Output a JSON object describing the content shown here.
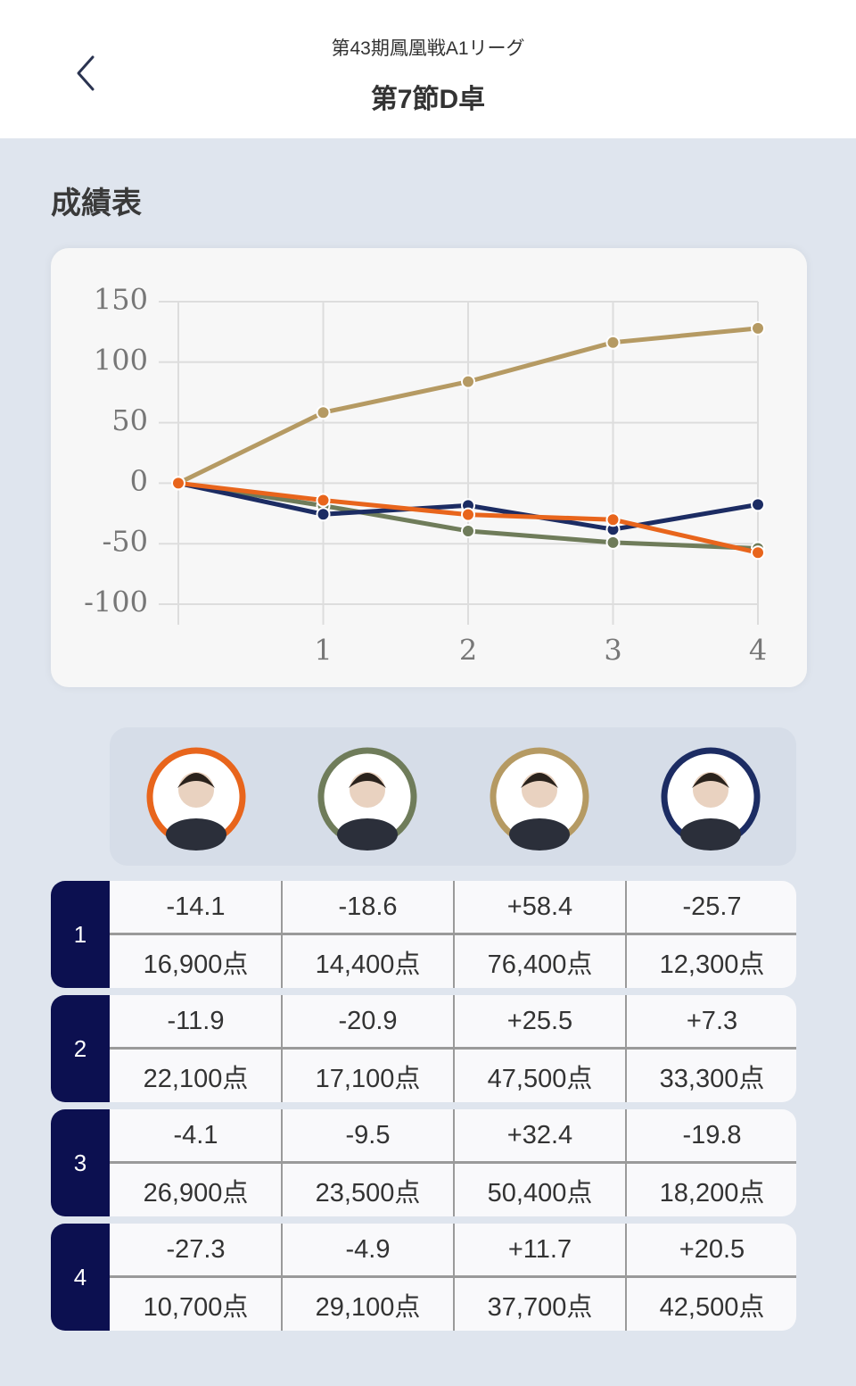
{
  "header": {
    "subtitle": "第43期鳳凰戦A1リーグ",
    "title": "第7節D卓"
  },
  "section_title": "成績表",
  "chart_data": {
    "type": "line",
    "categories": [
      null,
      "1",
      "2",
      "3",
      "4"
    ],
    "series": [
      {
        "color": "#e8651c",
        "values": [
          0,
          -14.1,
          -26.0,
          -30.1,
          -57.4
        ]
      },
      {
        "color": "#6f7c5a",
        "values": [
          0,
          -18.6,
          -39.5,
          -49.0,
          -53.9
        ]
      },
      {
        "color": "#b59a63",
        "values": [
          0,
          58.4,
          83.9,
          116.3,
          128.0
        ]
      },
      {
        "color": "#1c2c63",
        "values": [
          0,
          -25.7,
          -18.4,
          -38.2,
          -17.7
        ]
      }
    ],
    "ylim": [
      -100,
      150
    ],
    "yticks": [
      -100,
      -50,
      0,
      50,
      100,
      150
    ],
    "grid": true
  },
  "table": {
    "rows": [
      {
        "round": "1",
        "scores": [
          "-14.1",
          "-18.6",
          "+58.4",
          "-25.7"
        ],
        "points": [
          "16,900点",
          "14,400点",
          "76,400点",
          "12,300点"
        ]
      },
      {
        "round": "2",
        "scores": [
          "-11.9",
          "-20.9",
          "+25.5",
          "+7.3"
        ],
        "points": [
          "22,100点",
          "17,100点",
          "47,500点",
          "33,300点"
        ]
      },
      {
        "round": "3",
        "scores": [
          "-4.1",
          "-9.5",
          "+32.4",
          "-19.8"
        ],
        "points": [
          "26,900点",
          "23,500点",
          "50,400点",
          "18,200点"
        ]
      },
      {
        "round": "4",
        "scores": [
          "-27.3",
          "-4.9",
          "+11.7",
          "+20.5"
        ],
        "points": [
          "10,700点",
          "29,100点",
          "37,700点",
          "42,500点"
        ]
      }
    ]
  }
}
